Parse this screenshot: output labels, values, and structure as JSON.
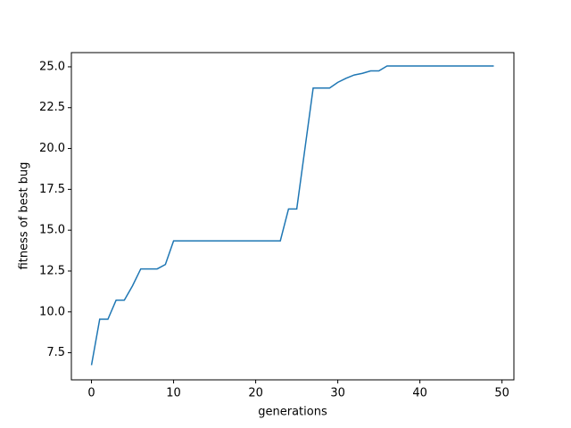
{
  "chart_data": {
    "type": "line",
    "xlabel": "generations",
    "ylabel": "fitness of best bug",
    "x": [
      0,
      1,
      2,
      3,
      4,
      5,
      6,
      7,
      8,
      9,
      10,
      11,
      12,
      13,
      14,
      15,
      16,
      17,
      18,
      19,
      20,
      21,
      22,
      23,
      24,
      25,
      26,
      27,
      28,
      29,
      30,
      31,
      32,
      33,
      34,
      35,
      36,
      37,
      38,
      39,
      40,
      41,
      42,
      43,
      44,
      45,
      46,
      47,
      48,
      49
    ],
    "series": [
      {
        "color": "#1f77b4",
        "values": [
          6.74,
          9.55,
          9.55,
          10.72,
          10.72,
          11.6,
          12.63,
          12.63,
          12.63,
          12.9,
          14.35,
          14.35,
          14.35,
          14.35,
          14.35,
          14.35,
          14.35,
          14.35,
          14.35,
          14.35,
          14.35,
          14.35,
          14.35,
          14.35,
          16.3,
          16.3,
          20.0,
          23.7,
          23.7,
          23.7,
          24.05,
          24.3,
          24.5,
          24.6,
          24.75,
          24.75,
          25.05,
          25.05,
          25.05,
          25.05,
          25.05,
          25.05,
          25.05,
          25.05,
          25.05,
          25.05,
          25.05,
          25.05,
          25.05,
          25.05
        ]
      }
    ],
    "xlim": [
      -2.45,
      51.45
    ],
    "ylim": [
      5.84,
      25.87
    ],
    "xticks": [
      0,
      10,
      20,
      30,
      40,
      50
    ],
    "yticks": [
      7.5,
      {
        "value": 10,
        "label": "10.0"
      },
      12.5,
      {
        "value": 15,
        "label": "15.0"
      },
      17.5,
      {
        "value": 20,
        "label": "20.0"
      },
      22.5,
      {
        "value": 25,
        "label": "25.0"
      }
    ]
  }
}
